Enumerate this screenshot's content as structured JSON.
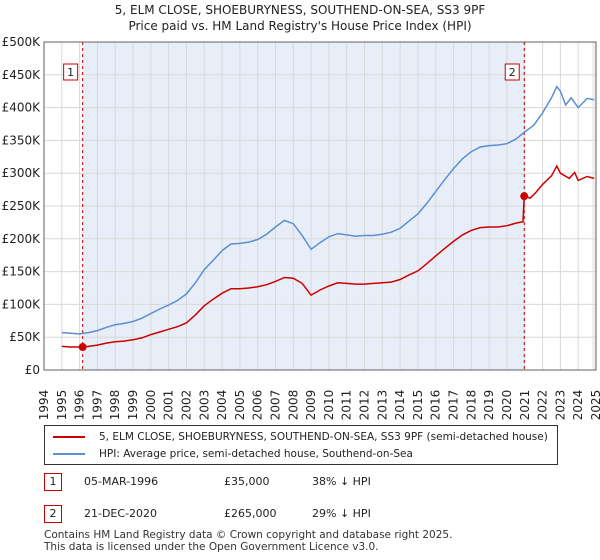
{
  "title_line1": "5, ELM CLOSE, SHOEBURYNESS, SOUTHEND-ON-SEA, SS3 9PF",
  "title_line2": "Price paid vs. HM Land Registry's House Price Index (HPI)",
  "chart_data": {
    "type": "line",
    "x_range": [
      1994,
      2025
    ],
    "y_range": [
      0,
      500000
    ],
    "y_ticks": [
      0,
      50000,
      100000,
      150000,
      200000,
      250000,
      300000,
      350000,
      400000,
      450000,
      500000
    ],
    "y_tick_labels": [
      "£0",
      "£50K",
      "£100K",
      "£150K",
      "£200K",
      "£250K",
      "£300K",
      "£350K",
      "£400K",
      "£450K",
      "£500K"
    ],
    "x_ticks": [
      1994,
      1995,
      1996,
      1997,
      1998,
      1999,
      2000,
      2001,
      2002,
      2003,
      2004,
      2005,
      2006,
      2007,
      2008,
      2009,
      2010,
      2011,
      2012,
      2013,
      2014,
      2015,
      2016,
      2017,
      2018,
      2019,
      2020,
      2021,
      2022,
      2023,
      2024,
      2025
    ],
    "x_tick_labels": [
      "1994",
      "1995",
      "1996",
      "1997",
      "1998",
      "1999",
      "2000",
      "2001",
      "2002",
      "2003",
      "2004",
      "2005",
      "2006",
      "2007",
      "2008",
      "2009",
      "2010",
      "2011",
      "2012",
      "2013",
      "2014",
      "2015",
      "2016",
      "2017",
      "2018",
      "2019",
      "2020",
      "2021",
      "2022",
      "2023",
      "2024",
      "2025"
    ],
    "grid": true,
    "ownership_shading": [
      1996.17,
      2020.97
    ],
    "series": [
      {
        "name": "5, ELM CLOSE, SHOEBURYNESS, SOUTHEND-ON-SEA, SS3 9PF (semi-detached house)",
        "color": "#cc0000",
        "points": [
          [
            1995.0,
            36000
          ],
          [
            1995.5,
            35000
          ],
          [
            1996.17,
            35000
          ],
          [
            1996.5,
            36000
          ],
          [
            1997.0,
            38000
          ],
          [
            1997.5,
            41000
          ],
          [
            1998.0,
            43000
          ],
          [
            1998.5,
            44000
          ],
          [
            1999.0,
            46000
          ],
          [
            1999.5,
            49000
          ],
          [
            2000.0,
            54000
          ],
          [
            2000.5,
            58000
          ],
          [
            2001.0,
            62000
          ],
          [
            2001.5,
            66000
          ],
          [
            2002.0,
            72000
          ],
          [
            2002.5,
            84000
          ],
          [
            2003.0,
            98000
          ],
          [
            2003.5,
            108000
          ],
          [
            2004.0,
            117000
          ],
          [
            2004.5,
            124000
          ],
          [
            2005.0,
            124000
          ],
          [
            2005.5,
            125000
          ],
          [
            2006.0,
            127000
          ],
          [
            2006.5,
            130000
          ],
          [
            2007.0,
            135000
          ],
          [
            2007.5,
            141000
          ],
          [
            2008.0,
            140000
          ],
          [
            2008.5,
            132000
          ],
          [
            2009.0,
            114000
          ],
          [
            2009.5,
            122000
          ],
          [
            2010.0,
            128000
          ],
          [
            2010.5,
            133000
          ],
          [
            2011.0,
            132000
          ],
          [
            2011.5,
            131000
          ],
          [
            2012.0,
            131000
          ],
          [
            2012.5,
            132000
          ],
          [
            2013.0,
            133000
          ],
          [
            2013.5,
            134000
          ],
          [
            2014.0,
            138000
          ],
          [
            2014.5,
            145000
          ],
          [
            2015.0,
            151000
          ],
          [
            2015.5,
            162000
          ],
          [
            2016.0,
            174000
          ],
          [
            2016.5,
            185000
          ],
          [
            2017.0,
            196000
          ],
          [
            2017.5,
            206000
          ],
          [
            2018.0,
            213000
          ],
          [
            2018.5,
            217000
          ],
          [
            2019.0,
            218000
          ],
          [
            2019.5,
            218000
          ],
          [
            2020.0,
            220000
          ],
          [
            2020.5,
            224000
          ],
          [
            2020.9,
            226000
          ],
          [
            2020.97,
            265000
          ],
          [
            2021.3,
            262000
          ],
          [
            2021.6,
            270000
          ],
          [
            2022.0,
            283000
          ],
          [
            2022.5,
            296000
          ],
          [
            2022.8,
            311000
          ],
          [
            2023.0,
            300000
          ],
          [
            2023.5,
            292000
          ],
          [
            2023.8,
            301000
          ],
          [
            2024.0,
            289000
          ],
          [
            2024.5,
            295000
          ],
          [
            2024.9,
            292000
          ]
        ]
      },
      {
        "name": "HPI: Average price, semi-detached house, Southend-on-Sea",
        "color": "#5b8fd0",
        "points": [
          [
            1995.0,
            57000
          ],
          [
            1995.5,
            56000
          ],
          [
            1996.0,
            55000
          ],
          [
            1996.5,
            57000
          ],
          [
            1997.0,
            60000
          ],
          [
            1997.5,
            65000
          ],
          [
            1998.0,
            69000
          ],
          [
            1998.5,
            71000
          ],
          [
            1999.0,
            74000
          ],
          [
            1999.5,
            79000
          ],
          [
            2000.0,
            86000
          ],
          [
            2000.5,
            93000
          ],
          [
            2001.0,
            99000
          ],
          [
            2001.5,
            106000
          ],
          [
            2002.0,
            116000
          ],
          [
            2002.5,
            133000
          ],
          [
            2003.0,
            153000
          ],
          [
            2003.5,
            167000
          ],
          [
            2004.0,
            182000
          ],
          [
            2004.5,
            192000
          ],
          [
            2005.0,
            193000
          ],
          [
            2005.5,
            195000
          ],
          [
            2006.0,
            199000
          ],
          [
            2006.5,
            207000
          ],
          [
            2007.0,
            218000
          ],
          [
            2007.5,
            228000
          ],
          [
            2008.0,
            223000
          ],
          [
            2008.5,
            205000
          ],
          [
            2009.0,
            184000
          ],
          [
            2009.5,
            194000
          ],
          [
            2010.0,
            203000
          ],
          [
            2010.5,
            208000
          ],
          [
            2011.0,
            206000
          ],
          [
            2011.5,
            204000
          ],
          [
            2012.0,
            205000
          ],
          [
            2012.5,
            205000
          ],
          [
            2013.0,
            207000
          ],
          [
            2013.5,
            210000
          ],
          [
            2014.0,
            216000
          ],
          [
            2014.5,
            227000
          ],
          [
            2015.0,
            238000
          ],
          [
            2015.5,
            254000
          ],
          [
            2016.0,
            272000
          ],
          [
            2016.5,
            290000
          ],
          [
            2017.0,
            307000
          ],
          [
            2017.5,
            322000
          ],
          [
            2018.0,
            333000
          ],
          [
            2018.5,
            340000
          ],
          [
            2019.0,
            342000
          ],
          [
            2019.5,
            343000
          ],
          [
            2020.0,
            345000
          ],
          [
            2020.5,
            352000
          ],
          [
            2021.0,
            363000
          ],
          [
            2021.5,
            373000
          ],
          [
            2022.0,
            392000
          ],
          [
            2022.5,
            415000
          ],
          [
            2022.8,
            432000
          ],
          [
            2023.0,
            425000
          ],
          [
            2023.3,
            404000
          ],
          [
            2023.6,
            415000
          ],
          [
            2024.0,
            400000
          ],
          [
            2024.5,
            414000
          ],
          [
            2024.9,
            412000
          ]
        ]
      }
    ],
    "transactions": [
      {
        "label": "1",
        "year": 1996.17,
        "price": 35000
      },
      {
        "label": "2",
        "year": 2020.97,
        "price": 265000
      }
    ]
  },
  "legend": {
    "property_label": "5, ELM CLOSE, SHOEBURYNESS, SOUTHEND-ON-SEA, SS3 9PF (semi-detached house)",
    "hpi_label": "HPI: Average price, semi-detached house, Southend-on-Sea",
    "property_color": "#cc0000",
    "hpi_color": "#5b8fd0"
  },
  "annotations": [
    {
      "label": "1",
      "date": "05-MAR-1996",
      "price": "£35,000",
      "hpi_diff": "38% ↓ HPI"
    },
    {
      "label": "2",
      "date": "21-DEC-2020",
      "price": "£265,000",
      "hpi_diff": "29% ↓ HPI"
    }
  ],
  "footer_line1": "Contains HM Land Registry data © Crown copyright and database right 2025.",
  "footer_line2": "This data is licensed under the Open Government Licence v3.0."
}
